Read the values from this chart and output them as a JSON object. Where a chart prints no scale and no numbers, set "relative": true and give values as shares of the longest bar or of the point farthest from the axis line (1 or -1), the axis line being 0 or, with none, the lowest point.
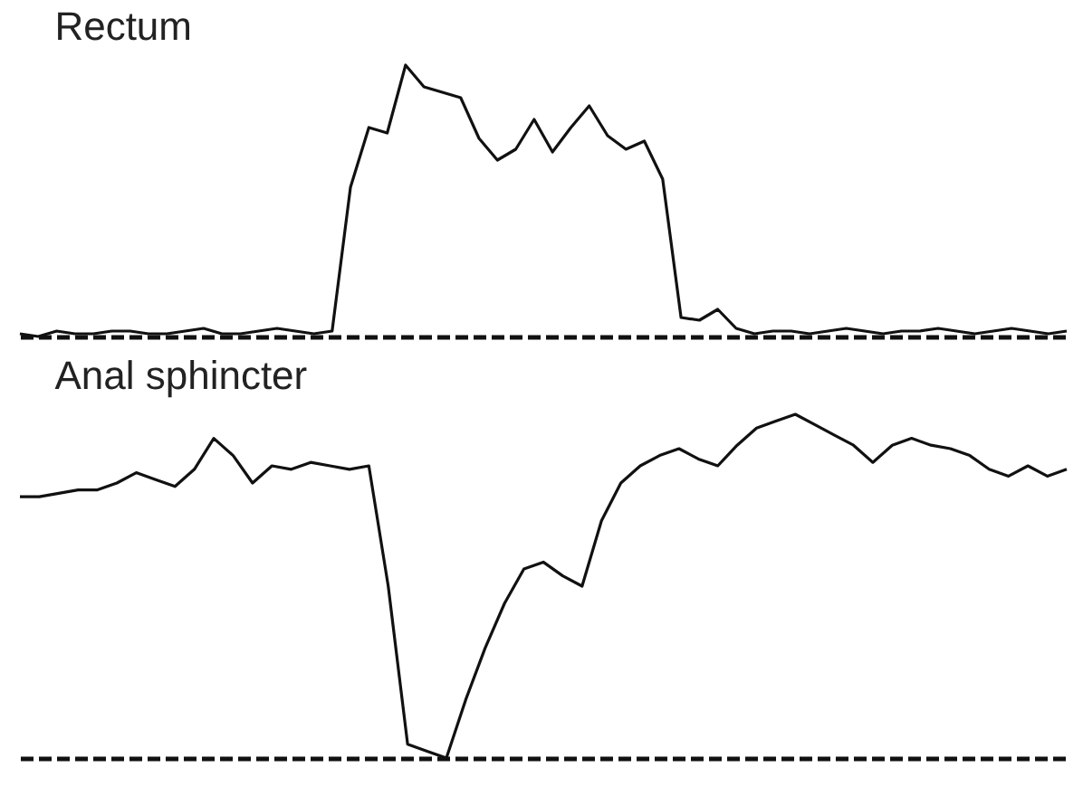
{
  "chart_data": [
    {
      "type": "line",
      "title": "Rectum",
      "relative": true,
      "legend": false,
      "marker": "none",
      "line_style": "solid",
      "categories": [
        null,
        null,
        null,
        null,
        null,
        null,
        null,
        null,
        null,
        null,
        null,
        null,
        null,
        null,
        null,
        null,
        null,
        null,
        null,
        null,
        null,
        null,
        null,
        null,
        null,
        null,
        null,
        null,
        null,
        null,
        null,
        null,
        null,
        null,
        null,
        null,
        null,
        null,
        null,
        null,
        null,
        null,
        null,
        null,
        null,
        null,
        null,
        null,
        null,
        null,
        null,
        null,
        null,
        null,
        null,
        null,
        null,
        null
      ],
      "series": [
        {
          "color": "#111111",
          "values": [
            0.01,
            0,
            0.02,
            0.01,
            0.01,
            0.02,
            0.02,
            0.01,
            0.01,
            0.02,
            0.03,
            0.01,
            0.01,
            0.02,
            0.03,
            0.02,
            0.01,
            0.02,
            0.55,
            0.77,
            0.75,
            1,
            0.92,
            0.9,
            0.88,
            0.73,
            0.65,
            0.69,
            0.8,
            0.68,
            0.77,
            0.85,
            0.74,
            0.69,
            0.72,
            0.58,
            0.07,
            0.06,
            0.1,
            0.03,
            0.01,
            0.02,
            0.02,
            0.01,
            0.02,
            0.03,
            0.02,
            0.01,
            0.02,
            0.02,
            0.03,
            0.02,
            0.01,
            0.02,
            0.03,
            0.02,
            0.01,
            0.02
          ]
        }
      ]
    },
    {
      "type": "line",
      "title": "Anal sphincter",
      "relative": true,
      "legend": false,
      "marker": "none",
      "line_style": "solid",
      "categories": [
        null,
        null,
        null,
        null,
        null,
        null,
        null,
        null,
        null,
        null,
        null,
        null,
        null,
        null,
        null,
        null,
        null,
        null,
        null,
        null,
        null,
        null,
        null,
        null,
        null,
        null,
        null,
        null,
        null,
        null,
        null,
        null,
        null,
        null,
        null,
        null,
        null,
        null,
        null,
        null,
        null,
        null,
        null,
        null,
        null,
        null,
        null,
        null,
        null,
        null,
        null,
        null,
        null,
        null,
        null
      ],
      "series": [
        {
          "color": "#111111",
          "values": [
            0.76,
            0.76,
            0.77,
            0.78,
            0.78,
            0.8,
            0.83,
            0.81,
            0.79,
            0.84,
            0.93,
            0.88,
            0.8,
            0.85,
            0.84,
            0.86,
            0.85,
            0.84,
            0.85,
            0.5,
            0.04,
            0.02,
            0,
            0.17,
            0.32,
            0.45,
            0.55,
            0.57,
            0.53,
            0.5,
            0.69,
            0.8,
            0.85,
            0.88,
            0.9,
            0.87,
            0.85,
            0.91,
            0.96,
            0.98,
            1,
            0.97,
            0.94,
            0.91,
            0.86,
            0.91,
            0.93,
            0.91,
            0.9,
            0.88,
            0.84,
            0.82,
            0.85,
            0.82,
            0.84
          ]
        }
      ]
    }
  ]
}
